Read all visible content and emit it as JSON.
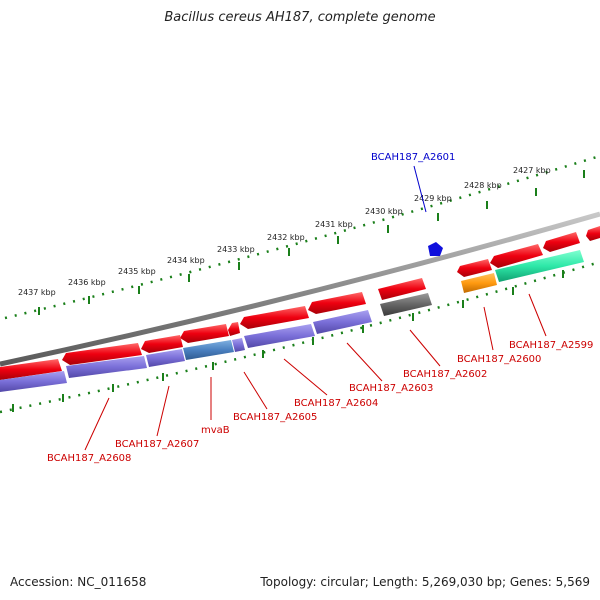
{
  "title": "Bacillus cereus AH187, complete genome",
  "footer": {
    "accession": "Accession: NC_011658",
    "summary": "Topology: circular; Length: 5,269,030 bp; Genes: 5,569"
  },
  "colors": {
    "cds_forward": "#e8001a",
    "cds_reverse": "#7b6fd6",
    "backbone": "#888888",
    "ticks": "#1a7f1a",
    "label_red": "#cc0000",
    "label_blue": "#0000cc"
  },
  "kbp_labels": [
    "2427 kbp",
    "2428 kbp",
    "2429 kbp",
    "2430 kbp",
    "2431 kbp",
    "2432 kbp",
    "2433 kbp",
    "2434 kbp",
    "2435 kbp",
    "2436 kbp",
    "2437 kbp"
  ],
  "gene_labels": [
    "BCAH187_A2601",
    "BCAH187_A2599",
    "BCAH187_A2600",
    "BCAH187_A2602",
    "BCAH187_A2603",
    "BCAH187_A2604",
    "BCAH187_A2605",
    "mvaB",
    "BCAH187_A2607",
    "BCAH187_A2608"
  ]
}
